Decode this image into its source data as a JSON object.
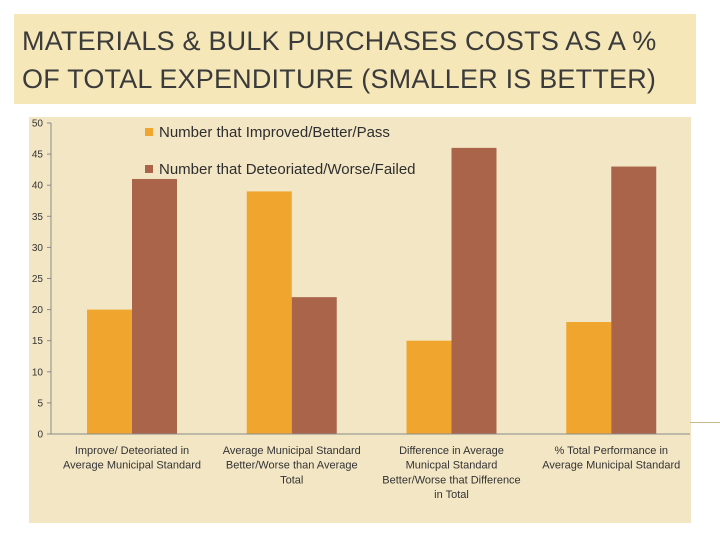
{
  "slide": {
    "title_line1": "MATERIALS & BULK PURCHASES COSTS AS A %",
    "title_line2": "OF TOTAL EXPENDITURE (SMALLER IS BETTER)"
  },
  "colors": {
    "improved": "#f0a52e",
    "deteriorated": "#a9644a",
    "panel": "#f3e6c4",
    "title_band": "#f6e7b8"
  },
  "chart_data": {
    "type": "bar",
    "categories": [
      [
        "Improve/ Deteoriated in",
        "Average Municipal Standard"
      ],
      [
        "Average Municipal Standard",
        "Better/Worse than Average",
        "Total"
      ],
      [
        "Difference in Average",
        "Municpal Standard",
        "Better/Worse that Difference",
        "in Total"
      ],
      [
        "% Total Performance in",
        "Average Municipal Standard"
      ]
    ],
    "series": [
      {
        "name": "Number that Improved/Better/Pass",
        "values": [
          20,
          39,
          15,
          18
        ]
      },
      {
        "name": "Number that Deteoriated/Worse/Failed",
        "values": [
          41,
          22,
          46,
          43
        ]
      }
    ],
    "yticks": [
      "0",
      "5",
      "10",
      "15",
      "20",
      "25",
      "30",
      "35",
      "40",
      "45",
      "50"
    ],
    "ylim": [
      0,
      50
    ],
    "grid": false,
    "legend_position": "top-center"
  }
}
